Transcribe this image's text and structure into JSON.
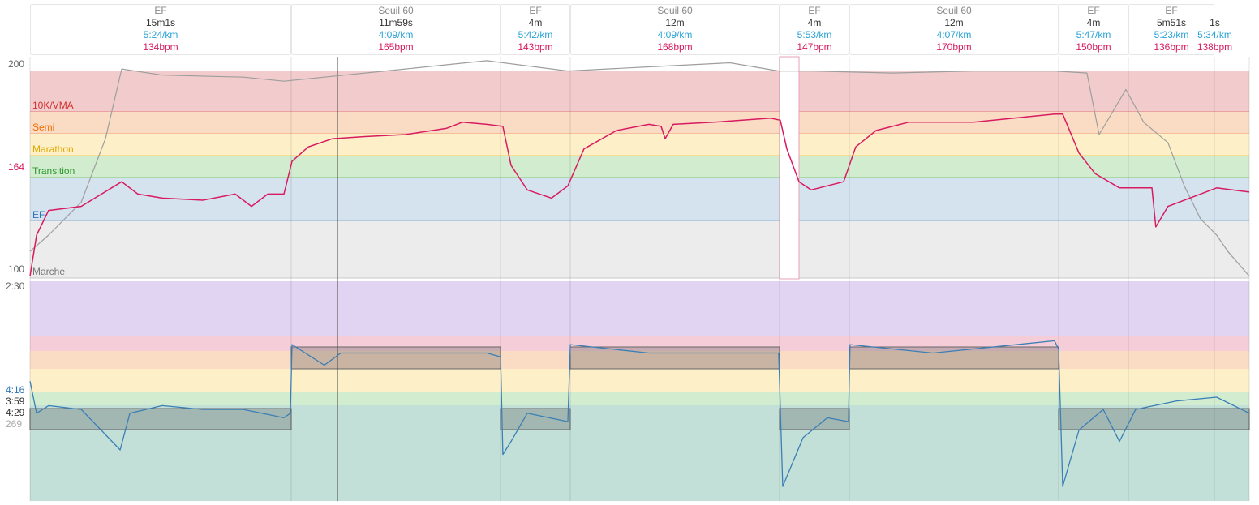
{
  "segments": [
    {
      "name": "EF",
      "duration": "15m1s",
      "pace": "5:24/km",
      "bpm": "134bpm"
    },
    {
      "name": "Seuil 60",
      "duration": "11m59s",
      "pace": "4:09/km",
      "bpm": "165bpm"
    },
    {
      "name": "EF",
      "duration": "4m",
      "pace": "5:42/km",
      "bpm": "143bpm"
    },
    {
      "name": "Seuil 60",
      "duration": "12m",
      "pace": "4:09/km",
      "bpm": "168bpm"
    },
    {
      "name": "EF",
      "duration": "4m",
      "pace": "5:53/km",
      "bpm": "147bpm"
    },
    {
      "name": "Seuil 60",
      "duration": "12m",
      "pace": "4:07/km",
      "bpm": "170bpm"
    },
    {
      "name": "EF",
      "duration": "4m",
      "pace": "5:47/km",
      "bpm": "150bpm"
    },
    {
      "name": "EF",
      "duration": "5m51s",
      "pace": "5:23/km",
      "bpm": "136bpm"
    },
    {
      "name": "",
      "duration": "1s",
      "pace": "5:34/km",
      "bpm": "138bpm"
    }
  ],
  "hr_panel": {
    "axis_labels": [
      "200",
      "164",
      "100"
    ],
    "zones": [
      "10K/VMA",
      "Semi",
      "Marathon",
      "Transition",
      "EF",
      "Marche"
    ],
    "xlim": [
      0,
      68.87
    ],
    "ylim": [
      100,
      200
    ],
    "heart_rate": {
      "color": "#d81b60",
      "x": [
        0,
        0.37,
        1.05,
        2.89,
        5.18,
        6.09,
        7.47,
        9.76,
        11.59,
        12.51,
        13.43,
        14.34,
        14.8,
        15.72,
        17.09,
        18.92,
        21.21,
        23.51,
        24.42,
        25.8,
        26.71,
        27.17,
        28.09,
        29.46,
        30.38,
        31.29,
        33.13,
        34.96,
        35.65,
        35.88,
        36.33,
        38.63,
        41.83,
        42.38,
        42.75,
        43.44,
        44.12,
        45.96,
        46.64,
        47.79,
        49.62,
        53.29,
        55.58,
        57.87,
        58.33,
        59.25,
        60.16,
        61.54,
        63.37,
        63.59,
        64.28,
        66.11,
        67.03,
        68.87
      ],
      "values": [
        97,
        117,
        129,
        131,
        143,
        137,
        135,
        134,
        137,
        131,
        137,
        137,
        153,
        160,
        164,
        165,
        166,
        169,
        172,
        171,
        170,
        151,
        139,
        135,
        141,
        159,
        168,
        171,
        170,
        164,
        171,
        172,
        174,
        173,
        159,
        143,
        139,
        143,
        160,
        168,
        172,
        172,
        174,
        176,
        176,
        157,
        147,
        140,
        140,
        121,
        131,
        137,
        140,
        138
      ]
    },
    "elevation": {
      "color": "#9e9e9e",
      "x": [
        0,
        1.05,
        2.89,
        4.26,
        5.18,
        7.47,
        12.05,
        14.34,
        16.63,
        21.21,
        25.8,
        30.38,
        34.96,
        39.54,
        42.29,
        44.12,
        48.71,
        53.29,
        57.87,
        59.7,
        60.39,
        61.08,
        61.9,
        62.91,
        64.28,
        65.2,
        66.11,
        67.03,
        67.66,
        68.87
      ],
      "values": [
        109,
        117,
        133,
        164,
        198,
        195,
        194,
        192,
        194,
        198,
        202,
        197,
        199,
        201,
        197,
        197,
        196,
        197,
        197,
        196,
        166,
        176,
        188,
        172,
        162,
        141,
        125,
        117,
        109,
        97
      ]
    }
  },
  "pace_panel": {
    "axis_labels": [
      "2:30",
      "4:16",
      "3:59",
      "4:29",
      "269"
    ],
    "xlim": [
      0,
      68.87
    ],
    "ylim": [
      150,
      438
    ],
    "pace": {
      "color": "#3a7fb5",
      "x": [
        0,
        0.37,
        1.05,
        2.89,
        5.09,
        5.64,
        7.47,
        9.76,
        12.05,
        14.34,
        14.71,
        14.8,
        16.63,
        17.55,
        21.21,
        25.8,
        26.58,
        26.71,
        27.17,
        28.09,
        30.38,
        30.52,
        34.96,
        39.54,
        42.29,
        42.52,
        43.67,
        45.04,
        46.23,
        46.32,
        51,
        57.87,
        58.1,
        58.33,
        59.25,
        60.62,
        61.54,
        62.45,
        64.74,
        67.03,
        68.87
      ],
      "values": [
        281,
        323,
        313,
        318,
        371,
        323,
        313,
        318,
        318,
        329,
        323,
        233,
        260,
        244,
        244,
        244,
        249,
        377,
        360,
        323,
        334,
        233,
        244,
        244,
        244,
        419,
        355,
        329,
        334,
        233,
        244,
        228,
        239,
        419,
        345,
        318,
        360,
        318,
        307,
        302,
        323
      ]
    }
  }
}
